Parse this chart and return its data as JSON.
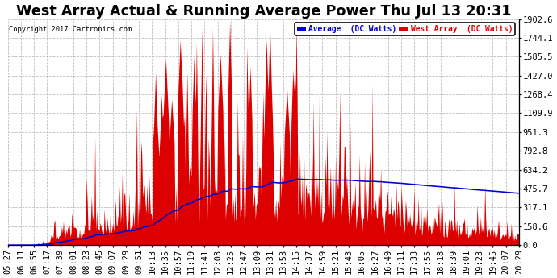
{
  "title": "West Array Actual & Running Average Power Thu Jul 13 20:31",
  "copyright": "Copyright 2017 Cartronics.com",
  "legend_avg": "Average  (DC Watts)",
  "legend_west": "West Array  (DC Watts)",
  "ymin": 0.0,
  "ymax": 1902.6,
  "yticks": [
    0.0,
    158.6,
    317.1,
    475.7,
    634.2,
    792.8,
    951.3,
    1109.9,
    1268.4,
    1427.0,
    1585.5,
    1744.1,
    1902.6
  ],
  "bg_color": "#ffffff",
  "plot_bg_color": "#ffffff",
  "grid_color": "#bbbbbb",
  "bar_color": "#dd0000",
  "avg_line_color": "#0000cc",
  "title_fontsize": 11,
  "tick_fontsize": 6.5,
  "x_labels": [
    "05:27",
    "06:11",
    "06:55",
    "07:17",
    "07:39",
    "08:01",
    "08:23",
    "08:45",
    "09:07",
    "09:29",
    "09:51",
    "10:13",
    "10:35",
    "10:57",
    "11:19",
    "11:41",
    "12:03",
    "12:25",
    "12:47",
    "13:09",
    "13:31",
    "13:53",
    "14:15",
    "14:37",
    "14:59",
    "15:21",
    "15:43",
    "16:05",
    "16:27",
    "16:49",
    "17:11",
    "17:33",
    "17:55",
    "18:18",
    "18:39",
    "19:01",
    "19:23",
    "19:45",
    "20:07",
    "20:29"
  ]
}
